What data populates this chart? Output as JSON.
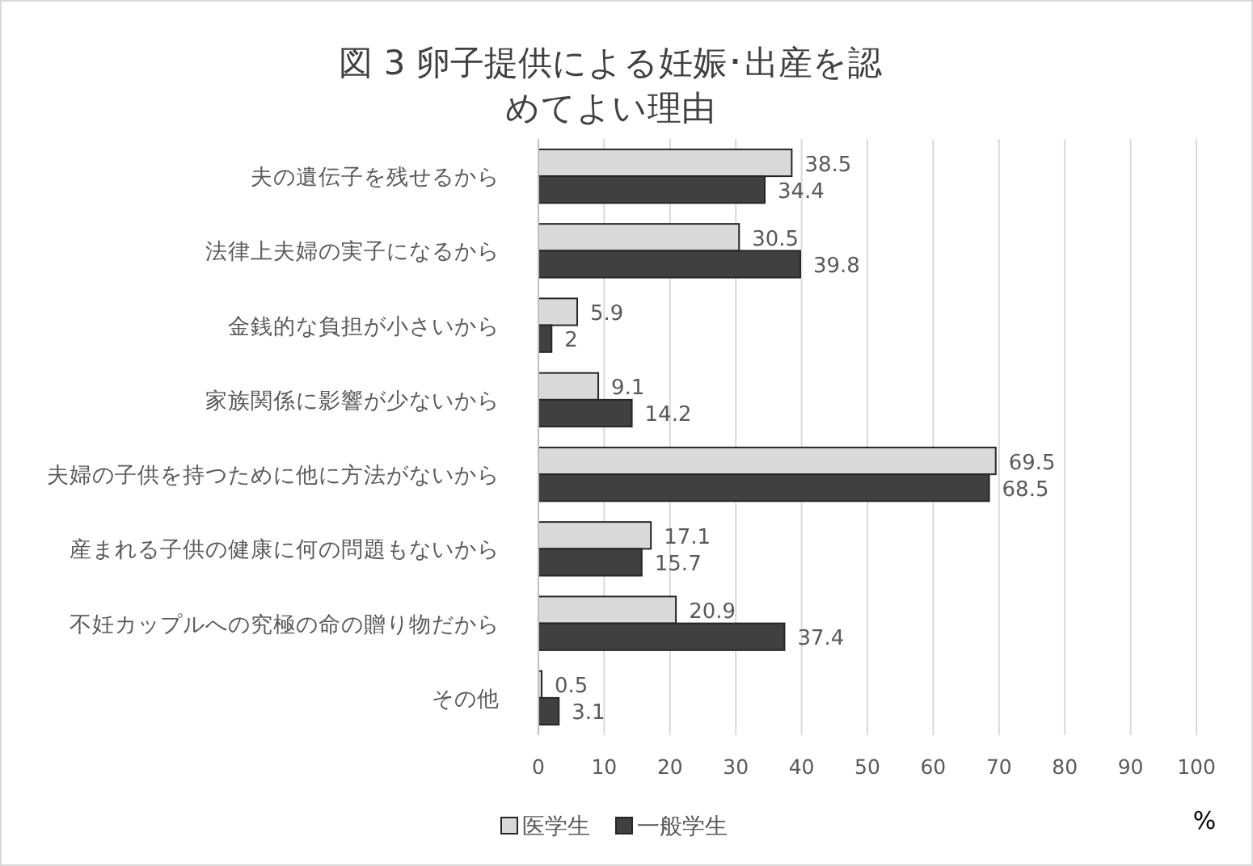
{
  "chart_data": {
    "type": "bar",
    "orientation": "horizontal",
    "title": "図 3  卵子提供による妊娠･出産を認めてよい理由",
    "xlabel": "%",
    "categories": [
      "夫の遺伝子を残せるから",
      "法律上夫婦の実子になるから",
      "金銭的な負担が小さいから",
      "家族関係に影響が少ないから",
      "夫婦の子供を持つために他に方法がないから",
      "産まれる子供の健康に何の問題もないから",
      "不妊カップルへの究極の命の贈り物だから",
      "その他"
    ],
    "series": [
      {
        "name": "医学生",
        "color": "#d9d9d9",
        "values": [
          38.5,
          30.5,
          5.9,
          9.1,
          69.5,
          17.1,
          20.9,
          0.5
        ]
      },
      {
        "name": "一般学生",
        "color": "#404040",
        "values": [
          34.4,
          39.8,
          2,
          14.2,
          68.5,
          15.7,
          37.4,
          3.1
        ]
      }
    ],
    "xlim": [
      0,
      100
    ],
    "xticks": [
      0,
      10,
      20,
      30,
      40,
      50,
      60,
      70,
      80,
      90,
      100
    ],
    "grid": "x",
    "legend": "bottom",
    "data_labels": true
  }
}
